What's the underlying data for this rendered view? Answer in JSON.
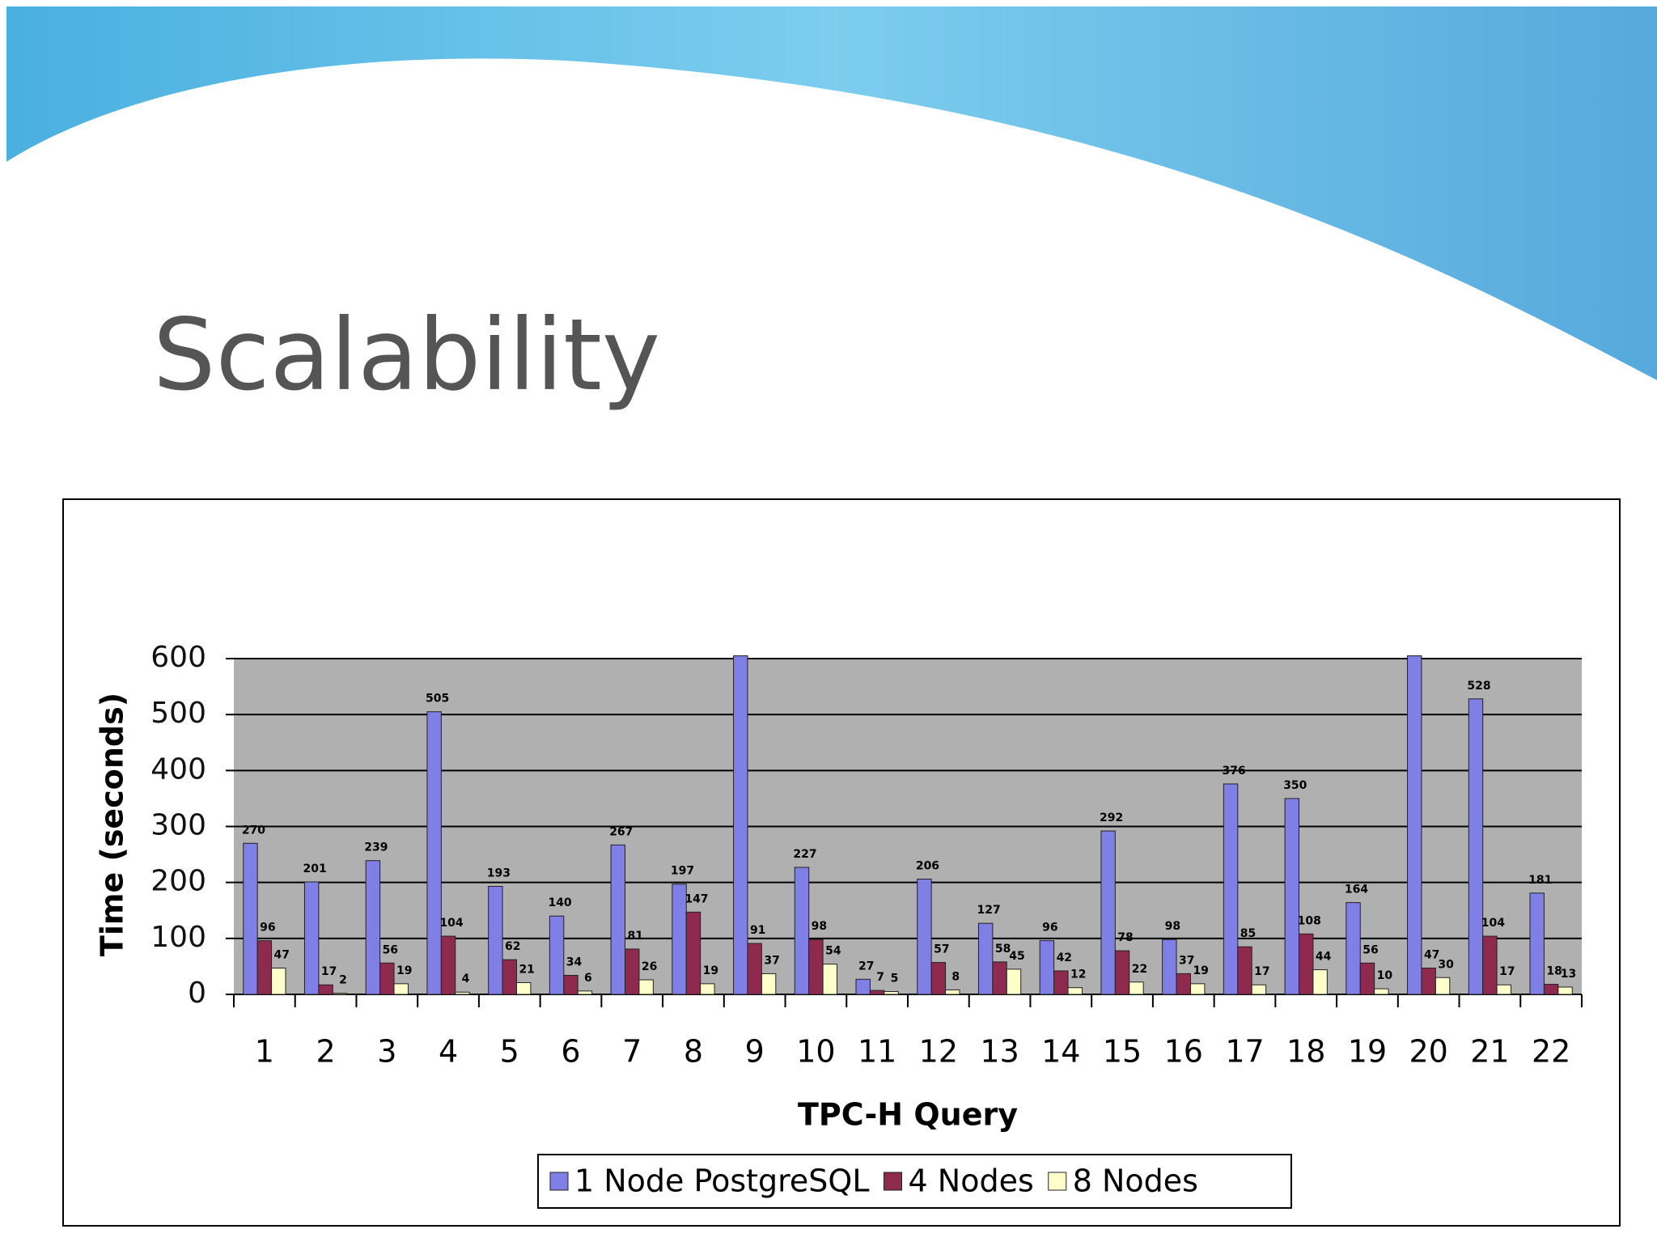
{
  "slide": {
    "title": "Scalability"
  },
  "chart_data": {
    "type": "bar",
    "x_label": "TPC-H Query",
    "y_label": "Time (seconds)",
    "categories": [
      "1",
      "2",
      "3",
      "4",
      "5",
      "6",
      "7",
      "8",
      "9",
      "10",
      "11",
      "12",
      "13",
      "14",
      "15",
      "16",
      "17",
      "18",
      "19",
      "20",
      "21",
      "22"
    ],
    "series": [
      {
        "name": "1 Node PostgreSQL",
        "color": "#7f7fe6",
        "values": [
          270,
          201,
          239,
          505,
          193,
          140,
          267,
          197,
          605,
          227,
          27,
          206,
          127,
          96,
          292,
          98,
          376,
          350,
          164,
          605,
          528,
          181
        ]
      },
      {
        "name": "4 Nodes",
        "color": "#8e2a4e",
        "values": [
          96,
          17,
          56,
          104,
          62,
          34,
          81,
          147,
          91,
          98,
          7,
          57,
          58,
          42,
          78,
          37,
          85,
          108,
          56,
          47,
          104,
          18
        ]
      },
      {
        "name": "8 Nodes",
        "color": "#ffffcc",
        "values": [
          47,
          2,
          19,
          4,
          21,
          6,
          26,
          19,
          37,
          54,
          5,
          8,
          45,
          12,
          22,
          19,
          17,
          44,
          10,
          30,
          17,
          13
        ]
      }
    ],
    "ylim": [
      0,
      600
    ],
    "yticks": [
      0,
      100,
      200,
      300,
      400,
      500,
      600
    ],
    "grid": true,
    "legend": "bottom"
  }
}
